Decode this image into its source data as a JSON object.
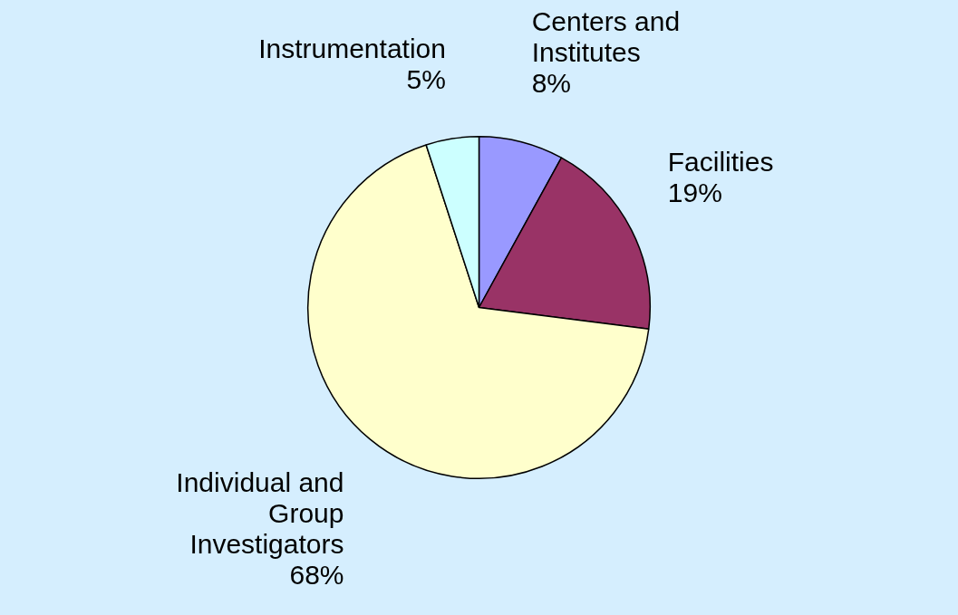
{
  "chart_data": {
    "type": "pie",
    "categories": [
      "Centers and Institutes",
      "Facilities",
      "Individual and Group Investigators",
      "Instrumentation"
    ],
    "values": [
      8,
      19,
      68,
      5
    ],
    "value_labels": [
      "8%",
      "19%",
      "68%",
      "5%"
    ],
    "colors": [
      "#9999ff",
      "#993366",
      "#ffffcc",
      "#ccffff"
    ],
    "legend": false
  }
}
